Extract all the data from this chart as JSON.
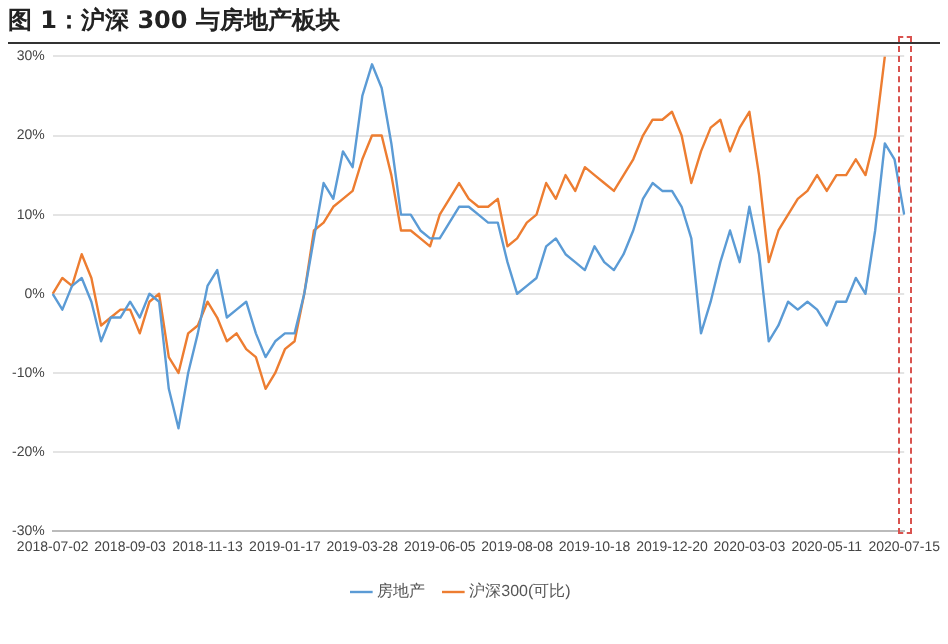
{
  "chart_data": {
    "type": "line",
    "title": "图 1：沪深 300 与房地产板块",
    "categories": [
      "2018-07-02",
      null,
      null,
      null,
      null,
      null,
      null,
      null,
      "2018-09-03",
      null,
      null,
      null,
      null,
      null,
      null,
      null,
      "2018-11-13",
      null,
      null,
      null,
      null,
      null,
      null,
      null,
      "2019-01-17",
      null,
      null,
      null,
      null,
      null,
      null,
      null,
      "2019-03-28",
      null,
      null,
      null,
      null,
      null,
      null,
      null,
      "2019-06-05",
      null,
      null,
      null,
      null,
      null,
      null,
      null,
      "2019-08-08",
      null,
      null,
      null,
      null,
      null,
      null,
      null,
      "2019-10-18",
      null,
      null,
      null,
      null,
      null,
      null,
      null,
      "2019-12-20",
      null,
      null,
      null,
      null,
      null,
      null,
      null,
      "2020-03-03",
      null,
      null,
      null,
      null,
      null,
      null,
      null,
      "2020-05-11",
      null,
      null,
      null,
      null,
      null,
      null,
      null,
      "2020-07-15"
    ],
    "series": [
      {
        "name": "房地产",
        "color": "#5b9bd5",
        "values": [
          0,
          -2,
          1,
          2,
          -1,
          -6,
          -3,
          -3,
          -1,
          -3,
          0,
          -1,
          -12,
          -17,
          -10,
          -5,
          1,
          3,
          -3,
          -2,
          -1,
          -5,
          -8,
          -6,
          -5,
          -5,
          0,
          7,
          14,
          12,
          18,
          16,
          25,
          29,
          26,
          19,
          10,
          10,
          8,
          7,
          7,
          9,
          11,
          11,
          10,
          9,
          9,
          4,
          0,
          1,
          2,
          6,
          7,
          5,
          4,
          3,
          6,
          4,
          3,
          5,
          8,
          12,
          14,
          13,
          13,
          11,
          7,
          -5,
          -1,
          4,
          8,
          4,
          11,
          5,
          -6,
          -4,
          -1,
          -2,
          -1,
          -2,
          -4,
          -1,
          -1,
          2,
          0,
          8,
          19,
          17,
          10
        ]
      },
      {
        "name": "沪深300(可比)",
        "color": "#ed7d31",
        "values": [
          0,
          2,
          1,
          5,
          2,
          -4,
          -3,
          -2,
          -2,
          -5,
          -1,
          0,
          -8,
          -10,
          -5,
          -4,
          -1,
          -3,
          -6,
          -5,
          -7,
          -8,
          -12,
          -10,
          -7,
          -6,
          0,
          8,
          9,
          11,
          12,
          13,
          17,
          20,
          20,
          15,
          8,
          8,
          7,
          6,
          10,
          12,
          14,
          12,
          11,
          11,
          12,
          6,
          7,
          9,
          10,
          14,
          12,
          15,
          13,
          16,
          15,
          14,
          13,
          15,
          17,
          20,
          22,
          22,
          23,
          20,
          14,
          18,
          21,
          22,
          18,
          21,
          23,
          15,
          4,
          8,
          10,
          12,
          13,
          15,
          13,
          15,
          15,
          17,
          15,
          20,
          30,
          null,
          null
        ]
      }
    ],
    "ylim": [
      -30,
      30
    ],
    "yticks": [
      {
        "value": -30,
        "label": "-30%"
      },
      {
        "value": -20,
        "label": "-20%"
      },
      {
        "value": -10,
        "label": "-10%"
      },
      {
        "value": 0,
        "label": "0%"
      },
      {
        "value": 10,
        "label": "10%"
      },
      {
        "value": 20,
        "label": "20%"
      },
      {
        "value": 30,
        "label": "30%"
      }
    ],
    "grid": "y",
    "legend": "bottom",
    "marker": "none"
  }
}
